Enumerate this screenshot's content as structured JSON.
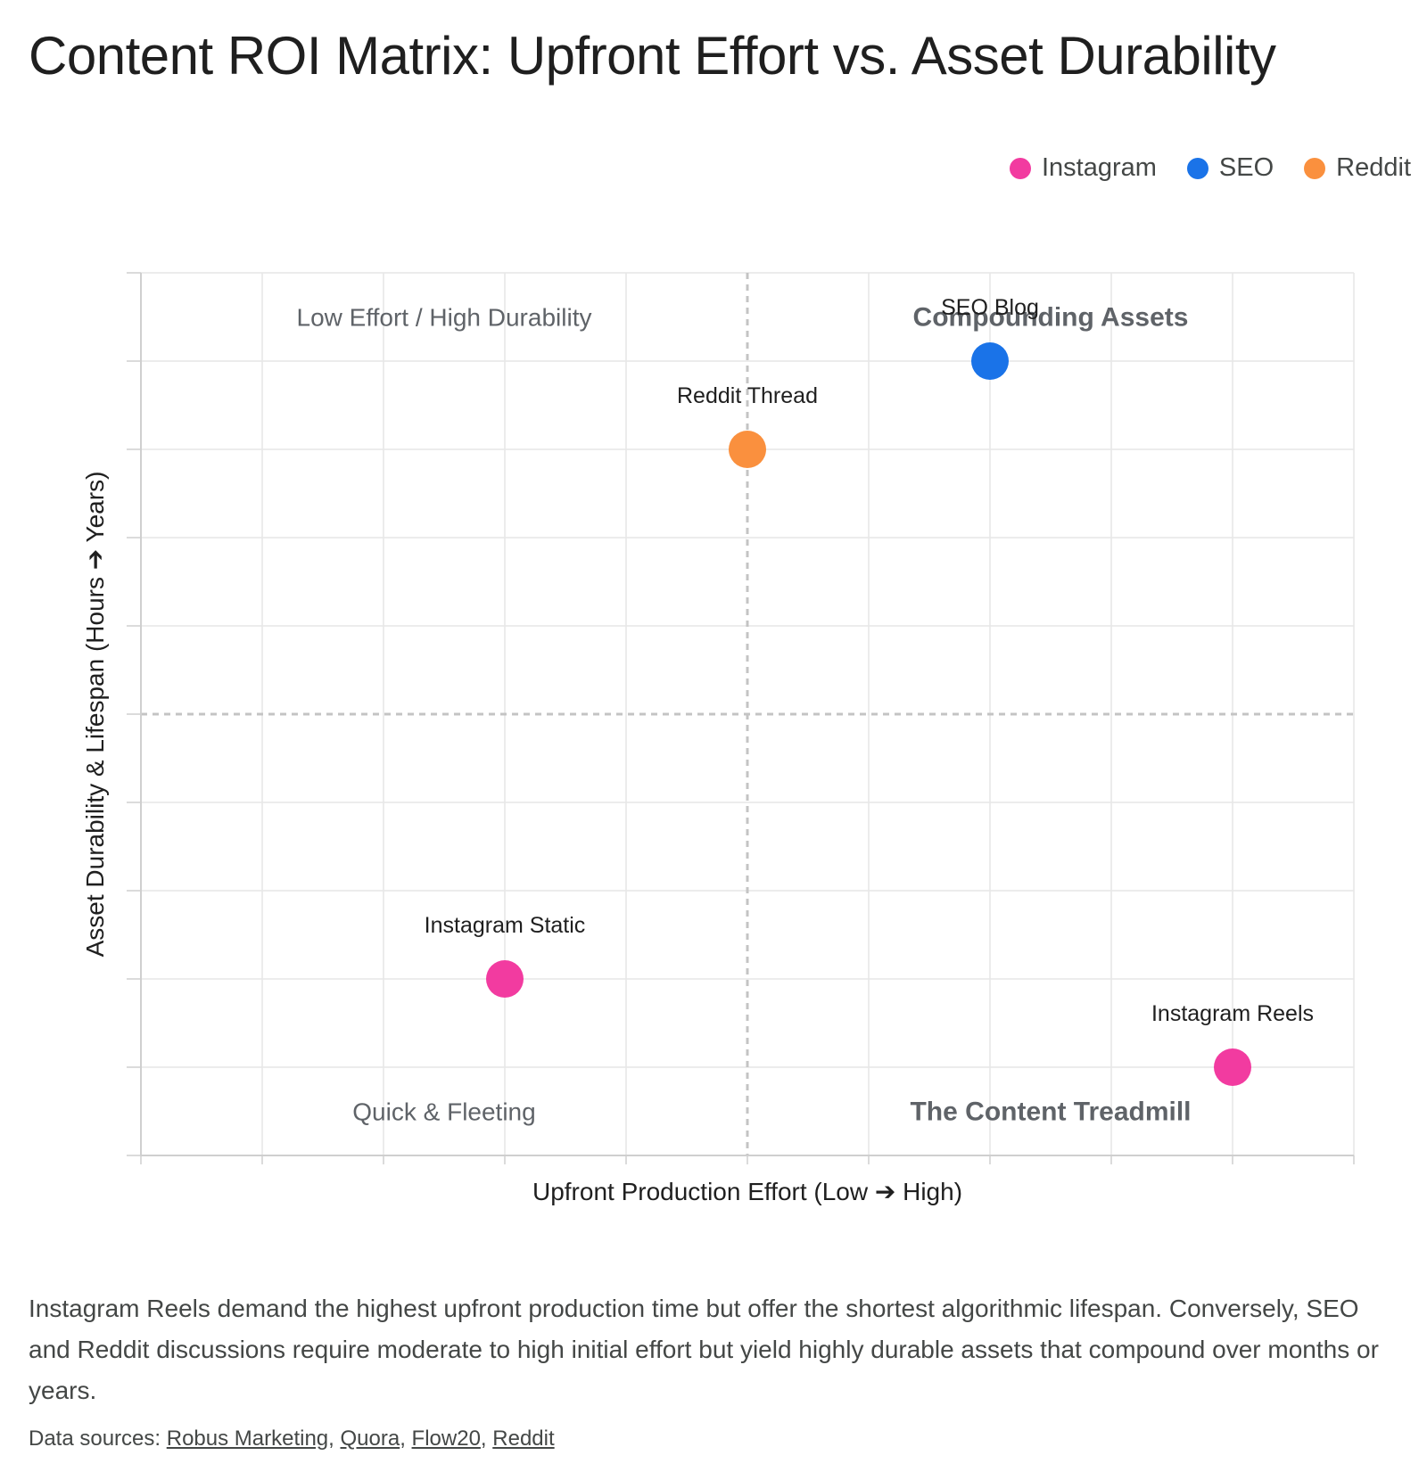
{
  "title": "Content ROI Matrix: Upfront Effort vs. Asset Durability",
  "legend": [
    {
      "name": "Instagram",
      "color": "#f23ba0"
    },
    {
      "name": "SEO",
      "color": "#1a73e8"
    },
    {
      "name": "Reddit",
      "color": "#fa903e"
    }
  ],
  "chart_data": {
    "type": "scatter",
    "xlabel": "Upfront Production Effort (Low ➔ High)",
    "ylabel": "Asset Durability & Lifespan (Hours ➔ Years)",
    "xlim": [
      0,
      10
    ],
    "ylim": [
      0,
      10
    ],
    "grid": true,
    "legend_position": "top-right",
    "quadrant_dividers": {
      "x": 5,
      "y": 5
    },
    "quadrant_labels": [
      {
        "text": "Low Effort / High Durability",
        "x": 2.5,
        "y": 9.5,
        "emphasis": false
      },
      {
        "text": "Compounding Assets",
        "x": 7.5,
        "y": 9.5,
        "emphasis": true
      },
      {
        "text": "Quick & Fleeting",
        "x": 2.5,
        "y": 0.5,
        "emphasis": false
      },
      {
        "text": "The Content Treadmill",
        "x": 7.5,
        "y": 0.5,
        "emphasis": true
      }
    ],
    "series": [
      {
        "name": "Instagram",
        "color": "#f23ba0",
        "points": [
          {
            "label": "Instagram Static",
            "x": 3,
            "y": 2
          },
          {
            "label": "Instagram Reels",
            "x": 9,
            "y": 1
          }
        ]
      },
      {
        "name": "SEO",
        "color": "#1a73e8",
        "points": [
          {
            "label": "SEO Blog",
            "x": 7,
            "y": 9
          }
        ]
      },
      {
        "name": "Reddit",
        "color": "#fa903e",
        "points": [
          {
            "label": "Reddit Thread",
            "x": 5,
            "y": 8
          }
        ]
      }
    ]
  },
  "summary": "Instagram Reels demand the highest upfront production time but offer the shortest algorithmic lifespan. Conversely, SEO and Reddit discussions require moderate to high initial effort but yield highly durable assets that compound over months or years.",
  "sources": {
    "prefix": "Data sources: ",
    "links": [
      "Robus Marketing",
      "Quora",
      "Flow20",
      "Reddit"
    ]
  }
}
